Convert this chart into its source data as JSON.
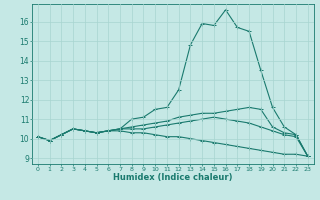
{
  "xlabel": "Humidex (Indice chaleur)",
  "background_color": "#c5e8e5",
  "grid_color": "#a8d5d0",
  "line_color": "#1a7a6e",
  "xlim": [
    -0.5,
    23.5
  ],
  "ylim": [
    8.7,
    16.9
  ],
  "xticks": [
    0,
    1,
    2,
    3,
    4,
    5,
    6,
    7,
    8,
    9,
    10,
    11,
    12,
    13,
    14,
    15,
    16,
    17,
    18,
    19,
    20,
    21,
    22,
    23
  ],
  "yticks": [
    9,
    10,
    11,
    12,
    13,
    14,
    15,
    16
  ],
  "series": [
    [
      10.1,
      9.9,
      10.2,
      10.5,
      10.4,
      10.3,
      10.4,
      10.5,
      11.0,
      11.1,
      11.5,
      11.6,
      12.5,
      14.8,
      15.9,
      15.8,
      16.6,
      15.7,
      15.5,
      13.5,
      11.6,
      10.6,
      10.2,
      9.1
    ],
    [
      10.1,
      9.9,
      10.2,
      10.5,
      10.4,
      10.3,
      10.4,
      10.5,
      10.6,
      10.7,
      10.8,
      10.9,
      11.1,
      11.2,
      11.3,
      11.3,
      11.4,
      11.5,
      11.6,
      11.5,
      10.6,
      10.3,
      10.2,
      9.1
    ],
    [
      10.1,
      9.9,
      10.2,
      10.5,
      10.4,
      10.3,
      10.4,
      10.5,
      10.5,
      10.5,
      10.6,
      10.7,
      10.8,
      10.9,
      11.0,
      11.1,
      11.0,
      10.9,
      10.8,
      10.6,
      10.4,
      10.2,
      10.1,
      9.1
    ],
    [
      10.1,
      9.9,
      10.2,
      10.5,
      10.4,
      10.3,
      10.4,
      10.4,
      10.3,
      10.3,
      10.2,
      10.1,
      10.1,
      10.0,
      9.9,
      9.8,
      9.7,
      9.6,
      9.5,
      9.4,
      9.3,
      9.2,
      9.2,
      9.1
    ]
  ]
}
